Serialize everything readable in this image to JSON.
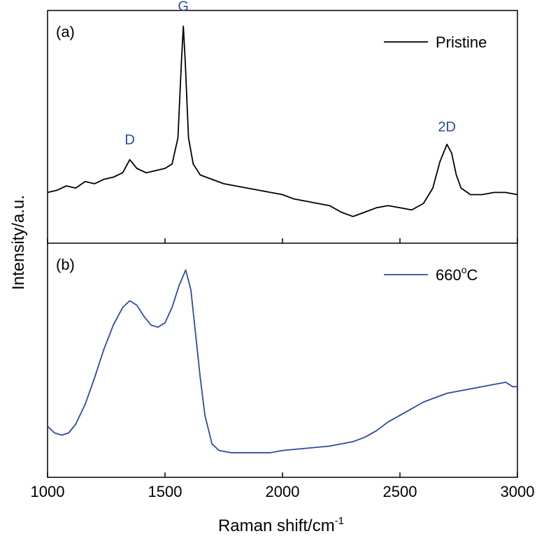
{
  "chart_data": {
    "type": "line",
    "xlabel_main": "Raman shift/cm",
    "xlabel_sup": "-1",
    "ylabel": "Intensity/a.u.",
    "xlim": [
      1000,
      3000
    ],
    "x_ticks": [
      1000,
      1500,
      2000,
      2500,
      3000
    ],
    "grid": false,
    "panels": [
      {
        "label": "(a)",
        "series": {
          "name": "Pristine",
          "color": "#000000",
          "ylim": [
            0,
            100
          ],
          "points": [
            [
              1000,
              20
            ],
            [
              1040,
              21
            ],
            [
              1080,
              23
            ],
            [
              1120,
              22
            ],
            [
              1160,
              25
            ],
            [
              1200,
              24
            ],
            [
              1240,
              26
            ],
            [
              1280,
              27
            ],
            [
              1320,
              29
            ],
            [
              1350,
              35
            ],
            [
              1380,
              31
            ],
            [
              1420,
              29
            ],
            [
              1460,
              30
            ],
            [
              1500,
              31
            ],
            [
              1530,
              33
            ],
            [
              1555,
              45
            ],
            [
              1570,
              80
            ],
            [
              1578,
              96
            ],
            [
              1586,
              80
            ],
            [
              1600,
              45
            ],
            [
              1620,
              33
            ],
            [
              1650,
              28
            ],
            [
              1700,
              26
            ],
            [
              1750,
              24
            ],
            [
              1800,
              23
            ],
            [
              1850,
              22
            ],
            [
              1900,
              21
            ],
            [
              1950,
              20
            ],
            [
              2000,
              19
            ],
            [
              2050,
              17
            ],
            [
              2100,
              16
            ],
            [
              2150,
              15
            ],
            [
              2200,
              14
            ],
            [
              2250,
              11
            ],
            [
              2300,
              9
            ],
            [
              2350,
              11
            ],
            [
              2400,
              13
            ],
            [
              2450,
              14
            ],
            [
              2500,
              13
            ],
            [
              2550,
              12
            ],
            [
              2600,
              15
            ],
            [
              2640,
              22
            ],
            [
              2670,
              34
            ],
            [
              2700,
              42
            ],
            [
              2720,
              38
            ],
            [
              2740,
              28
            ],
            [
              2760,
              22
            ],
            [
              2800,
              19
            ],
            [
              2850,
              19
            ],
            [
              2900,
              20
            ],
            [
              2950,
              20
            ],
            [
              3000,
              19
            ]
          ]
        },
        "peaks": [
          {
            "text": "D",
            "x": 1350,
            "y": 42
          },
          {
            "text": "G",
            "x": 1578,
            "y": 103
          },
          {
            "text": "2D",
            "x": 2700,
            "y": 48
          }
        ]
      },
      {
        "label": "(b)",
        "series": {
          "name": "660",
          "name_sup": "o",
          "name_suffix": "C",
          "color": "#2e4a9e",
          "ylim": [
            0,
            100
          ],
          "points": [
            [
              1000,
              20
            ],
            [
              1030,
              17
            ],
            [
              1060,
              16
            ],
            [
              1090,
              17
            ],
            [
              1120,
              21
            ],
            [
              1160,
              30
            ],
            [
              1200,
              42
            ],
            [
              1240,
              55
            ],
            [
              1280,
              66
            ],
            [
              1320,
              74
            ],
            [
              1350,
              77
            ],
            [
              1380,
              75
            ],
            [
              1410,
              70
            ],
            [
              1440,
              66
            ],
            [
              1470,
              65
            ],
            [
              1500,
              67
            ],
            [
              1530,
              74
            ],
            [
              1560,
              84
            ],
            [
              1588,
              91
            ],
            [
              1610,
              82
            ],
            [
              1630,
              62
            ],
            [
              1650,
              42
            ],
            [
              1670,
              25
            ],
            [
              1700,
              12
            ],
            [
              1730,
              9
            ],
            [
              1780,
              8
            ],
            [
              1840,
              8
            ],
            [
              1900,
              8
            ],
            [
              1950,
              8
            ],
            [
              2000,
              9
            ],
            [
              2100,
              10
            ],
            [
              2200,
              11
            ],
            [
              2300,
              13
            ],
            [
              2350,
              15
            ],
            [
              2400,
              18
            ],
            [
              2450,
              22
            ],
            [
              2500,
              25
            ],
            [
              2550,
              28
            ],
            [
              2600,
              31
            ],
            [
              2650,
              33
            ],
            [
              2700,
              35
            ],
            [
              2750,
              36
            ],
            [
              2800,
              37
            ],
            [
              2850,
              38
            ],
            [
              2900,
              39
            ],
            [
              2950,
              40
            ],
            [
              2980,
              38
            ],
            [
              3000,
              38
            ]
          ]
        }
      }
    ]
  }
}
